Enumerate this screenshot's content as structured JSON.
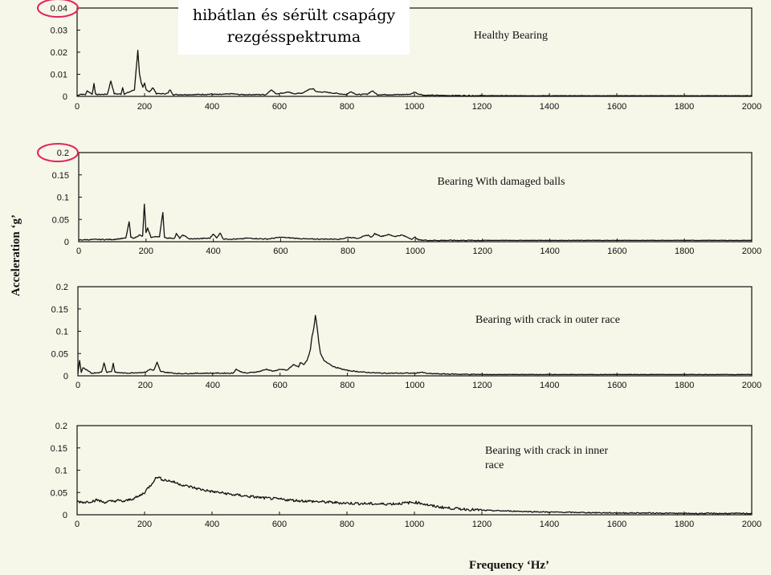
{
  "caption": {
    "line1": "hibátlan és sérült csapágy",
    "line2": "rezgésspektruma"
  },
  "colors": {
    "background": "#f6f6e9",
    "line": "#111111",
    "highlight_circle": "#e0245e",
    "caption_bg": "#ffffff"
  },
  "chart_data": [
    {
      "type": "line",
      "title": "Healthy Bearing",
      "xlabel": "Frequency ‘Hz’",
      "ylabel": "Acceleration ‘g’",
      "xlim": [
        0,
        2000
      ],
      "ylim": [
        0,
        0.04
      ],
      "yticks": [
        "0",
        "0.01",
        "0.02",
        "0.03",
        "0.04"
      ],
      "xticks": [
        "0",
        "200",
        "400",
        "600",
        "800",
        "1000",
        "1200",
        "1400",
        "1600",
        "1800",
        "2000"
      ],
      "highlighted_tick": "0.04",
      "x": [
        0,
        10,
        25,
        30,
        45,
        50,
        55,
        90,
        100,
        110,
        130,
        135,
        140,
        170,
        175,
        180,
        185,
        190,
        195,
        200,
        205,
        215,
        225,
        235,
        260,
        270,
        275,
        285,
        350,
        400,
        420,
        460,
        480,
        500,
        560,
        575,
        590,
        610,
        625,
        640,
        670,
        685,
        700,
        710,
        730,
        800,
        810,
        830,
        860,
        875,
        890,
        960,
        990,
        1000,
        1010,
        1030,
        1100,
        1300,
        1500,
        1700,
        1900,
        2000
      ],
      "y": [
        0.0003,
        0.001,
        0.0008,
        0.0025,
        0.001,
        0.006,
        0.0008,
        0.001,
        0.007,
        0.0012,
        0.001,
        0.004,
        0.001,
        0.003,
        0.012,
        0.021,
        0.01,
        0.006,
        0.004,
        0.006,
        0.003,
        0.002,
        0.004,
        0.0012,
        0.0012,
        0.0015,
        0.003,
        0.0008,
        0.0008,
        0.001,
        0.0008,
        0.0012,
        0.0008,
        0.0008,
        0.0008,
        0.003,
        0.0012,
        0.0015,
        0.002,
        0.0012,
        0.0015,
        0.003,
        0.0035,
        0.002,
        0.002,
        0.0008,
        0.0022,
        0.0008,
        0.001,
        0.0025,
        0.0008,
        0.0008,
        0.001,
        0.002,
        0.0012,
        0.0005,
        0.0004,
        0.0003,
        0.0003,
        0.0003,
        0.0003,
        0.0003
      ]
    },
    {
      "type": "line",
      "title": "Bearing With damaged balls",
      "xlim": [
        0,
        2000
      ],
      "ylim": [
        0,
        0.2
      ],
      "yticks": [
        "0",
        "0.05",
        "0.1",
        "0.15",
        "0.2"
      ],
      "xticks": [
        "0",
        "200",
        "400",
        "600",
        "800",
        "1000",
        "1200",
        "1400",
        "1600",
        "1800",
        "2000"
      ],
      "highlighted_tick": "0.2",
      "x": [
        0,
        50,
        100,
        140,
        150,
        155,
        165,
        180,
        190,
        195,
        200,
        205,
        215,
        240,
        250,
        255,
        265,
        285,
        290,
        300,
        310,
        330,
        390,
        400,
        410,
        420,
        430,
        480,
        500,
        560,
        600,
        640,
        680,
        780,
        800,
        830,
        860,
        870,
        880,
        900,
        920,
        940,
        960,
        990,
        1000,
        1010,
        1040,
        1200,
        1500,
        1800,
        2000
      ],
      "y": [
        0.004,
        0.005,
        0.005,
        0.008,
        0.045,
        0.01,
        0.008,
        0.015,
        0.012,
        0.085,
        0.02,
        0.03,
        0.01,
        0.012,
        0.065,
        0.01,
        0.008,
        0.008,
        0.018,
        0.008,
        0.015,
        0.006,
        0.008,
        0.018,
        0.008,
        0.02,
        0.006,
        0.006,
        0.008,
        0.006,
        0.01,
        0.008,
        0.006,
        0.006,
        0.01,
        0.008,
        0.015,
        0.01,
        0.018,
        0.012,
        0.016,
        0.012,
        0.015,
        0.006,
        0.01,
        0.004,
        0.003,
        0.003,
        0.003,
        0.003,
        0.003
      ]
    },
    {
      "type": "line",
      "title": "Bearing with crack in outer race",
      "xlim": [
        0,
        2000
      ],
      "ylim": [
        0,
        0.2
      ],
      "yticks": [
        "0",
        "0.05",
        "0.1",
        "0.15",
        "0.2"
      ],
      "xticks": [
        "0",
        "200",
        "400",
        "600",
        "800",
        "1000",
        "1200",
        "1400",
        "1600",
        "1800",
        "2000"
      ],
      "x": [
        0,
        5,
        10,
        15,
        40,
        70,
        78,
        85,
        100,
        105,
        110,
        140,
        200,
        215,
        225,
        235,
        240,
        245,
        260,
        300,
        380,
        460,
        470,
        480,
        500,
        540,
        560,
        580,
        600,
        620,
        640,
        655,
        660,
        670,
        680,
        685,
        690,
        695,
        700,
        705,
        710,
        715,
        720,
        730,
        740,
        760,
        800,
        850,
        900,
        950,
        1000,
        1020,
        1040,
        1100,
        1200,
        1500,
        1800,
        2000
      ],
      "y": [
        0.005,
        0.035,
        0.008,
        0.018,
        0.006,
        0.008,
        0.03,
        0.008,
        0.01,
        0.028,
        0.008,
        0.006,
        0.008,
        0.015,
        0.012,
        0.03,
        0.02,
        0.01,
        0.008,
        0.005,
        0.006,
        0.006,
        0.015,
        0.01,
        0.006,
        0.01,
        0.015,
        0.01,
        0.015,
        0.012,
        0.025,
        0.02,
        0.03,
        0.025,
        0.035,
        0.045,
        0.06,
        0.09,
        0.105,
        0.135,
        0.11,
        0.075,
        0.05,
        0.035,
        0.03,
        0.02,
        0.012,
        0.008,
        0.006,
        0.006,
        0.006,
        0.008,
        0.005,
        0.004,
        0.003,
        0.003,
        0.003,
        0.003
      ]
    },
    {
      "type": "line",
      "title": "Bearing with crack in inner race",
      "title_lines": [
        "Bearing with crack in inner",
        "race"
      ],
      "xlim": [
        0,
        2000
      ],
      "ylim": [
        0,
        0.2
      ],
      "yticks": [
        "0",
        "0.05",
        "0.1",
        "0.15",
        "0.2"
      ],
      "xticks": [
        "0",
        "200",
        "400",
        "600",
        "800",
        "1000",
        "1200",
        "1400",
        "1600",
        "1800",
        "2000"
      ],
      "x": [
        0,
        20,
        40,
        60,
        80,
        100,
        120,
        140,
        160,
        180,
        200,
        210,
        220,
        230,
        240,
        250,
        260,
        280,
        300,
        320,
        340,
        360,
        380,
        400,
        420,
        440,
        460,
        480,
        500,
        550,
        600,
        650,
        700,
        750,
        800,
        850,
        900,
        950,
        1000,
        1020,
        1050,
        1100,
        1200,
        1300,
        1400,
        1500,
        1600,
        1700,
        1800,
        1900,
        2000
      ],
      "y": [
        0.03,
        0.028,
        0.03,
        0.033,
        0.028,
        0.03,
        0.032,
        0.03,
        0.035,
        0.04,
        0.05,
        0.06,
        0.068,
        0.08,
        0.085,
        0.08,
        0.078,
        0.075,
        0.07,
        0.065,
        0.062,
        0.058,
        0.055,
        0.052,
        0.05,
        0.048,
        0.045,
        0.044,
        0.042,
        0.038,
        0.035,
        0.032,
        0.03,
        0.028,
        0.026,
        0.025,
        0.024,
        0.025,
        0.028,
        0.026,
        0.02,
        0.015,
        0.01,
        0.008,
        0.006,
        0.005,
        0.004,
        0.004,
        0.003,
        0.003,
        0.003
      ]
    }
  ]
}
